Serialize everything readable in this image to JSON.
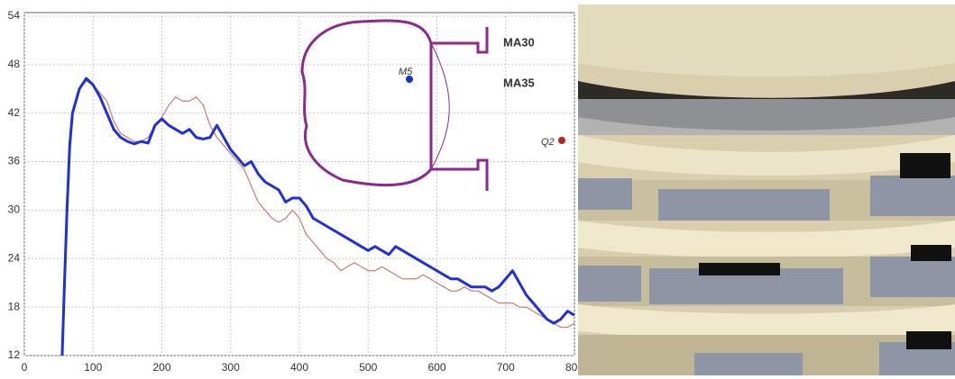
{
  "chart_data": {
    "type": "line",
    "x": [
      55,
      58,
      62,
      66,
      70,
      80,
      90,
      100,
      110,
      120,
      130,
      140,
      150,
      160,
      170,
      180,
      190,
      200,
      210,
      220,
      230,
      240,
      250,
      260,
      270,
      280,
      290,
      300,
      310,
      320,
      330,
      340,
      350,
      360,
      370,
      380,
      390,
      400,
      410,
      420,
      430,
      440,
      450,
      460,
      470,
      480,
      490,
      500,
      510,
      520,
      530,
      540,
      550,
      560,
      570,
      580,
      590,
      600,
      610,
      620,
      630,
      640,
      650,
      660,
      670,
      680,
      690,
      700,
      710,
      720,
      730,
      740,
      750,
      760,
      770,
      780,
      790,
      800
    ],
    "series": [
      {
        "name": "MA30",
        "color": "#c97b74",
        "values": [
          12,
          20,
          30,
          38,
          42,
          45,
          46,
          45.5,
          44.5,
          43.5,
          41,
          39.5,
          39,
          38.5,
          38.5,
          39,
          40.5,
          41.5,
          43,
          44,
          43.5,
          43.5,
          44,
          43,
          40.5,
          39,
          38,
          37,
          36,
          35,
          33,
          31,
          30,
          29,
          28.5,
          29,
          30,
          29,
          27,
          26,
          25,
          24,
          23.5,
          22.5,
          23,
          23.5,
          23,
          22.5,
          22.5,
          23,
          22.5,
          22,
          21.5,
          21.5,
          21.5,
          22,
          21.5,
          21,
          20.5,
          20,
          20,
          20.5,
          20,
          20,
          19.5,
          19,
          18.5,
          18.5,
          18.5,
          18,
          18,
          17.5,
          17,
          16.5,
          16,
          15.5,
          15.5,
          16
        ]
      },
      {
        "name": "MA35",
        "color": "#2030d8",
        "values": [
          12,
          20,
          30,
          38,
          42,
          45,
          46.3,
          45.5,
          44,
          42,
          40,
          39,
          38.5,
          38.2,
          38.5,
          38.3,
          40.5,
          41.3,
          40.5,
          40,
          39.5,
          40,
          39,
          38.8,
          39,
          40.5,
          39,
          37.5,
          36.5,
          35.5,
          36,
          34.5,
          33.5,
          33,
          32.5,
          31,
          31.5,
          31.5,
          30.5,
          29,
          28.5,
          28,
          27.5,
          27,
          26.5,
          26,
          25.5,
          25,
          25.5,
          25,
          24.5,
          25.5,
          25,
          24.5,
          24,
          23.5,
          23,
          22.5,
          22,
          21.5,
          21.5,
          21,
          20.5,
          20.5,
          20.5,
          20,
          20.5,
          21.5,
          22.5,
          21,
          19.5,
          18.5,
          17.5,
          16.5,
          16,
          16.5,
          17.5,
          17
        ]
      }
    ],
    "xlim": [
      0,
      800
    ],
    "xticks": [
      0,
      100,
      200,
      300,
      400,
      500,
      600,
      700,
      800
    ],
    "ylim": [
      12,
      54
    ],
    "yticks": [
      12,
      18,
      24,
      30,
      36,
      42,
      48,
      54
    ],
    "grid": true,
    "annotations": [
      "M5",
      "Q2"
    ]
  }
}
